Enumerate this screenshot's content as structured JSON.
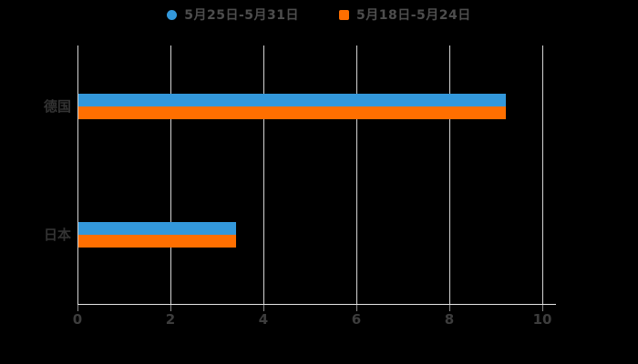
{
  "chart_data": {
    "type": "bar",
    "orientation": "horizontal",
    "title": "",
    "xlabel": "",
    "ylabel": "",
    "categories": [
      "德国",
      "日本"
    ],
    "series": [
      {
        "name": "5月25日-5月31日",
        "color": "#3398db",
        "marker": "circle",
        "values": [
          9.2,
          3.4
        ]
      },
      {
        "name": "5月18日-5月24日",
        "color": "#ff6f00",
        "marker": "square",
        "values": [
          9.2,
          3.4
        ]
      }
    ],
    "xlim": [
      0,
      10
    ],
    "xticks": [
      0,
      2,
      4,
      6,
      8,
      10
    ],
    "grid": "vertical",
    "legend_position": "top",
    "background_color": "#000000",
    "gridline_color": "#d4d4d4",
    "axis_text_color": "#3d3d3d",
    "category_text_color": "#333333",
    "legend_text_color": "#4d4d4d"
  }
}
